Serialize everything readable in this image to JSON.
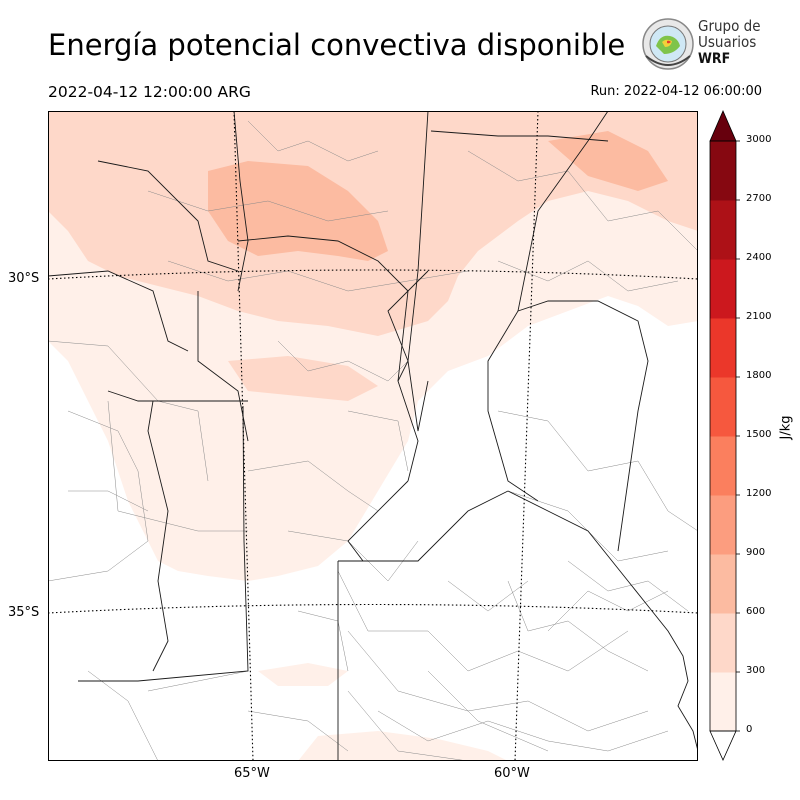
{
  "title": "Energía potencial convectiva disponible",
  "valid_time": "2022-04-12 12:00:00 ARG",
  "run_time": "Run: 2022-04-12 06:00:00",
  "logo": {
    "line1": "Grupo de",
    "line2": "Usuarios",
    "line3": "WRF"
  },
  "lat_labels": [
    "30°S",
    "35°S"
  ],
  "lon_labels": [
    "65°W",
    "60°W"
  ],
  "colorbar": {
    "label": "J/kg",
    "ticks": [
      "0",
      "300",
      "600",
      "900",
      "1200",
      "1500",
      "1800",
      "2100",
      "2400",
      "2700",
      "3000"
    ],
    "colors": [
      "#fff0e9",
      "#fed8c9",
      "#fcbba1",
      "#fc9d7f",
      "#fb7f5e",
      "#f6583e",
      "#eb372a",
      "#cc181e",
      "#ad1117",
      "#860811"
    ],
    "over_color": "#67000d",
    "under_color": "#ffffff"
  }
}
